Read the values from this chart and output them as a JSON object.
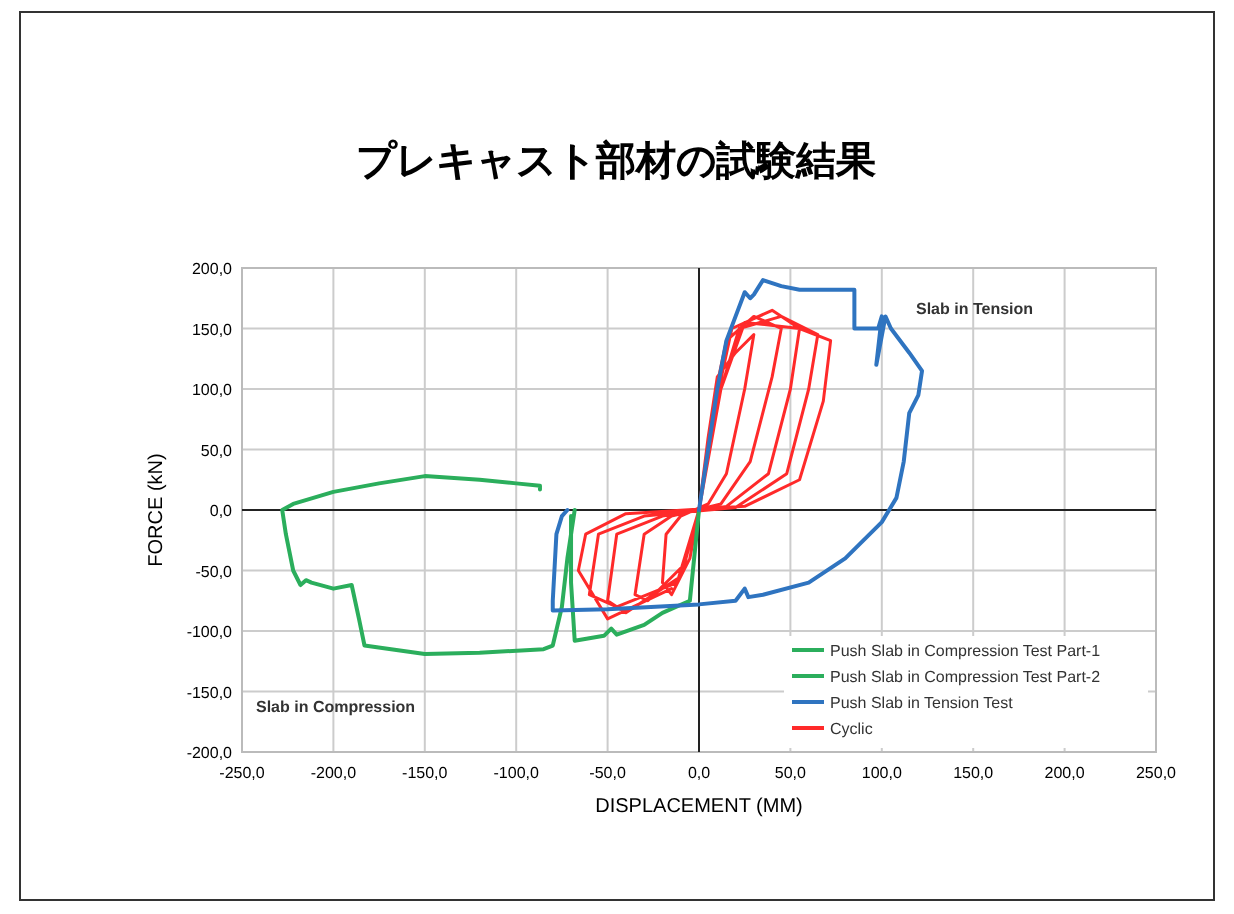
{
  "chart_data": {
    "type": "line",
    "title": "プレキャスト部材の試験結果",
    "xlabel": "DISPLACEMENT (MM)",
    "ylabel": "FORCE (kN)",
    "xlim": [
      -250,
      250
    ],
    "ylim": [
      -200,
      200
    ],
    "xticks": [
      {
        "value": -250,
        "label": "-250,0"
      },
      {
        "value": -200,
        "label": "-200,0"
      },
      {
        "value": -150,
        "label": "-150,0"
      },
      {
        "value": -100,
        "label": "-100,0"
      },
      {
        "value": -50,
        "label": "-50,0"
      },
      {
        "value": 0,
        "label": "0,0"
      },
      {
        "value": 50,
        "label": "50,0"
      },
      {
        "value": 100,
        "label": "100,0"
      },
      {
        "value": 150,
        "label": "150,0"
      },
      {
        "value": 200,
        "label": "200,0"
      },
      {
        "value": 250,
        "label": "250,0"
      }
    ],
    "yticks": [
      {
        "value": -200,
        "label": "-200,0"
      },
      {
        "value": -150,
        "label": "-150,0"
      },
      {
        "value": -100,
        "label": "-100,0"
      },
      {
        "value": -50,
        "label": "-50,0"
      },
      {
        "value": 0,
        "label": "0,0"
      },
      {
        "value": 50,
        "label": "50,0"
      },
      {
        "value": 100,
        "label": "100,0"
      },
      {
        "value": 150,
        "label": "150,0"
      },
      {
        "value": 200,
        "label": "200,0"
      }
    ],
    "grid": true,
    "legend": "bottom right",
    "line_style": "solid",
    "annotations": [
      "Slab in Tension",
      "Slab in Compression"
    ],
    "series": [
      {
        "name": "Push Slab in Compression Test Part-1",
        "color": "#2bae5c",
        "x": [
          0,
          -5,
          -20,
          -30,
          -45,
          -48,
          -52,
          -68,
          -70,
          -70
        ],
        "values": [
          0,
          -75,
          -85,
          -95,
          -103,
          -98,
          -104,
          -108,
          -60,
          -5
        ]
      },
      {
        "name": "Push Slab in Compression Test Part-2",
        "color": "#2bae5c",
        "x": [
          -68,
          -72,
          -75,
          -80,
          -85,
          -120,
          -150,
          -183,
          -186,
          -190,
          -200,
          -212,
          -215,
          -218,
          -222,
          -226,
          -228,
          -222,
          -200,
          -175,
          -150,
          -120,
          -100,
          -87,
          -87
        ],
        "values": [
          0,
          -40,
          -80,
          -112,
          -115,
          -118,
          -119,
          -112,
          -90,
          -62,
          -65,
          -60,
          -58,
          -62,
          -50,
          -20,
          0,
          5,
          15,
          22,
          28,
          25,
          22,
          20,
          17
        ]
      },
      {
        "name": "Push Slab in Tension Test",
        "color": "#2f74c0",
        "x": [
          0,
          5,
          10,
          15,
          20,
          25,
          28,
          30,
          35,
          45,
          55,
          70,
          85,
          85,
          98,
          100,
          97,
          102,
          105,
          115,
          122,
          120,
          115,
          112,
          108,
          100,
          80,
          60,
          35,
          27,
          25,
          20,
          0,
          -50,
          -80,
          -80,
          -78,
          -75,
          -72
        ],
        "values": [
          0,
          50,
          100,
          140,
          160,
          180,
          175,
          178,
          190,
          185,
          182,
          182,
          182,
          150,
          150,
          160,
          120,
          160,
          150,
          130,
          115,
          95,
          80,
          40,
          10,
          -10,
          -40,
          -60,
          -70,
          -72,
          -65,
          -75,
          -78,
          -82,
          -83,
          -75,
          -20,
          -5,
          0
        ]
      },
      {
        "name": "Cyclic",
        "color": "#ff2a2a",
        "x": [
          0,
          5,
          10,
          20,
          30,
          25,
          15,
          5,
          -10,
          -18,
          -20,
          -15,
          -5,
          0,
          8,
          15,
          30,
          45,
          40,
          28,
          12,
          -15,
          -30,
          -35,
          -28,
          -8,
          0,
          8,
          18,
          40,
          55,
          50,
          38,
          15,
          -20,
          -45,
          -50,
          -40,
          -10,
          0,
          10,
          22,
          45,
          65,
          60,
          48,
          20,
          -30,
          -55,
          -60,
          -45,
          -12,
          0,
          12,
          25,
          55,
          72,
          68,
          55,
          25,
          -40,
          -62,
          -66,
          -50,
          -15
        ],
        "values": [
          0,
          60,
          110,
          130,
          145,
          100,
          30,
          5,
          -5,
          -20,
          -60,
          -70,
          -40,
          0,
          90,
          140,
          160,
          150,
          110,
          40,
          5,
          -5,
          -20,
          -70,
          -75,
          -45,
          0,
          80,
          150,
          165,
          150,
          100,
          30,
          3,
          -5,
          -20,
          -75,
          -85,
          -55,
          0,
          90,
          150,
          160,
          145,
          100,
          30,
          2,
          -5,
          -20,
          -70,
          -80,
          -60,
          0,
          100,
          155,
          150,
          140,
          90,
          25,
          3,
          -3,
          -20,
          -50,
          -90,
          -65
        ]
      }
    ]
  }
}
